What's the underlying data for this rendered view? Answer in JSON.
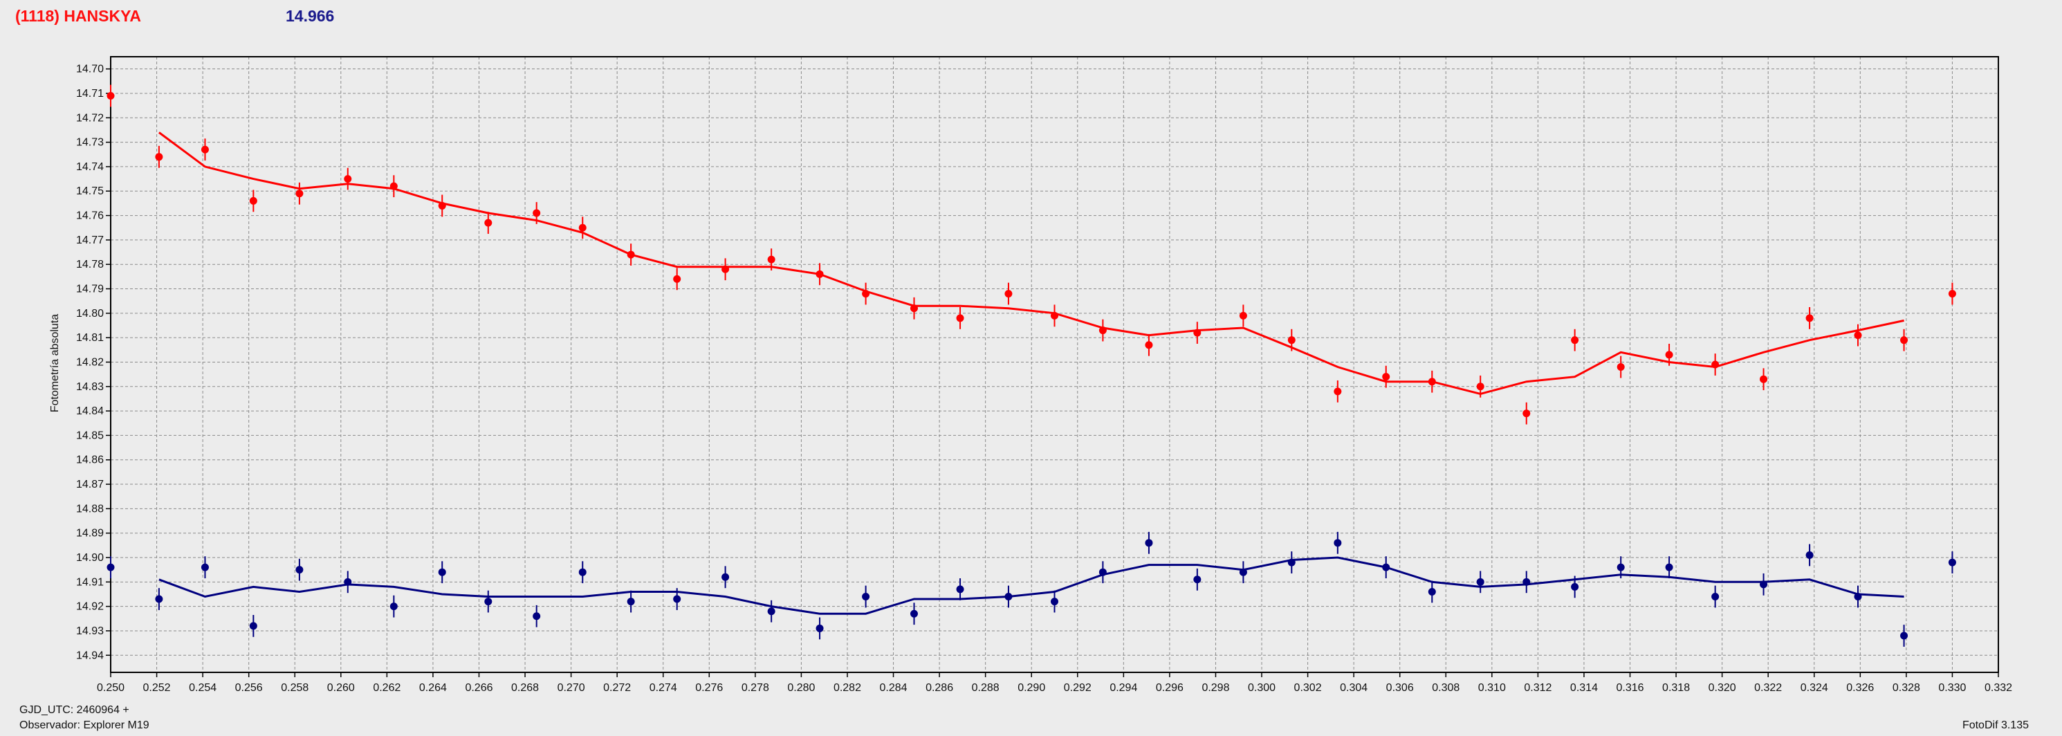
{
  "header": {
    "object": "(1118) HANSKYA",
    "magnitude": "14.966"
  },
  "footer": {
    "gjd": "GJD_UTC: 2460964 +",
    "observer": "Observador: Explorer M19",
    "software": "FotoDif 3.135"
  },
  "colors": {
    "target": "#ff0000",
    "comparison": "#00007f",
    "background": "#ececec"
  },
  "chart_data": {
    "type": "scatter",
    "ylabel": "Fotometría absoluta",
    "xlabel": "",
    "xlim": [
      0.25,
      0.332
    ],
    "ylim": [
      14.695,
      14.947
    ],
    "y_inverted": true,
    "grid": true,
    "x_ticks": [
      "0.250",
      "0.252",
      "0.254",
      "0.256",
      "0.258",
      "0.260",
      "0.262",
      "0.264",
      "0.266",
      "0.268",
      "0.270",
      "0.272",
      "0.274",
      "0.276",
      "0.278",
      "0.280",
      "0.282",
      "0.284",
      "0.286",
      "0.288",
      "0.290",
      "0.292",
      "0.294",
      "0.296",
      "0.298",
      "0.300",
      "0.302",
      "0.304",
      "0.306",
      "0.308",
      "0.310",
      "0.312",
      "0.314",
      "0.316",
      "0.318",
      "0.320",
      "0.322",
      "0.324",
      "0.326",
      "0.328",
      "0.330",
      "0.332"
    ],
    "y_ticks": [
      "14.70",
      "14.71",
      "14.72",
      "14.73",
      "14.74",
      "14.75",
      "14.76",
      "14.77",
      "14.78",
      "14.79",
      "14.80",
      "14.81",
      "14.82",
      "14.83",
      "14.84",
      "14.85",
      "14.86",
      "14.87",
      "14.88",
      "14.89",
      "14.90",
      "14.91",
      "14.92",
      "14.93",
      "14.94"
    ],
    "series": [
      {
        "color": "#ff0000",
        "points": [
          [
            0.25,
            14.711
          ],
          [
            0.2521,
            14.736
          ],
          [
            0.2541,
            14.733
          ],
          [
            0.2562,
            14.754
          ],
          [
            0.2582,
            14.751
          ],
          [
            0.2603,
            14.745
          ],
          [
            0.2623,
            14.748
          ],
          [
            0.2644,
            14.756
          ],
          [
            0.2664,
            14.763
          ],
          [
            0.2685,
            14.759
          ],
          [
            0.2705,
            14.765
          ],
          [
            0.2726,
            14.776
          ],
          [
            0.2746,
            14.786
          ],
          [
            0.2767,
            14.782
          ],
          [
            0.2787,
            14.778
          ],
          [
            0.2808,
            14.784
          ],
          [
            0.2828,
            14.792
          ],
          [
            0.2849,
            14.798
          ],
          [
            0.2869,
            14.802
          ],
          [
            0.289,
            14.792
          ],
          [
            0.291,
            14.801
          ],
          [
            0.2931,
            14.807
          ],
          [
            0.2951,
            14.813
          ],
          [
            0.2972,
            14.808
          ],
          [
            0.2992,
            14.801
          ],
          [
            0.3013,
            14.811
          ],
          [
            0.3033,
            14.832
          ],
          [
            0.3054,
            14.826
          ],
          [
            0.3074,
            14.828
          ],
          [
            0.3095,
            14.83
          ],
          [
            0.3115,
            14.841
          ],
          [
            0.3136,
            14.811
          ],
          [
            0.3156,
            14.822
          ],
          [
            0.3177,
            14.817
          ],
          [
            0.3197,
            14.821
          ],
          [
            0.3218,
            14.827
          ],
          [
            0.3238,
            14.802
          ],
          [
            0.3259,
            14.809
          ],
          [
            0.3279,
            14.811
          ],
          [
            0.33,
            14.792
          ]
        ],
        "fit": [
          [
            0.2521,
            14.726
          ],
          [
            0.2541,
            14.74
          ],
          [
            0.2562,
            14.745
          ],
          [
            0.2582,
            14.749
          ],
          [
            0.2603,
            14.747
          ],
          [
            0.2623,
            14.749
          ],
          [
            0.2644,
            14.755
          ],
          [
            0.2664,
            14.759
          ],
          [
            0.2685,
            14.762
          ],
          [
            0.2705,
            14.767
          ],
          [
            0.2726,
            14.776
          ],
          [
            0.2746,
            14.781
          ],
          [
            0.2767,
            14.781
          ],
          [
            0.2787,
            14.781
          ],
          [
            0.2808,
            14.784
          ],
          [
            0.2828,
            14.791
          ],
          [
            0.2849,
            14.797
          ],
          [
            0.2869,
            14.797
          ],
          [
            0.289,
            14.798
          ],
          [
            0.291,
            14.8
          ],
          [
            0.2931,
            14.806
          ],
          [
            0.2951,
            14.809
          ],
          [
            0.2972,
            14.807
          ],
          [
            0.2992,
            14.806
          ],
          [
            0.3013,
            14.814
          ],
          [
            0.3033,
            14.822
          ],
          [
            0.3054,
            14.828
          ],
          [
            0.3074,
            14.828
          ],
          [
            0.3095,
            14.833
          ],
          [
            0.3115,
            14.828
          ],
          [
            0.3136,
            14.826
          ],
          [
            0.3156,
            14.816
          ],
          [
            0.3177,
            14.82
          ],
          [
            0.3197,
            14.822
          ],
          [
            0.3218,
            14.816
          ],
          [
            0.3238,
            14.811
          ],
          [
            0.3259,
            14.807
          ],
          [
            0.3279,
            14.803
          ]
        ]
      },
      {
        "color": "#00007f",
        "points": [
          [
            0.25,
            14.904
          ],
          [
            0.2521,
            14.917
          ],
          [
            0.2541,
            14.904
          ],
          [
            0.2562,
            14.928
          ],
          [
            0.2582,
            14.905
          ],
          [
            0.2603,
            14.91
          ],
          [
            0.2623,
            14.92
          ],
          [
            0.2644,
            14.906
          ],
          [
            0.2664,
            14.918
          ],
          [
            0.2685,
            14.924
          ],
          [
            0.2705,
            14.906
          ],
          [
            0.2726,
            14.918
          ],
          [
            0.2746,
            14.917
          ],
          [
            0.2767,
            14.908
          ],
          [
            0.2787,
            14.922
          ],
          [
            0.2808,
            14.929
          ],
          [
            0.2828,
            14.916
          ],
          [
            0.2849,
            14.923
          ],
          [
            0.2869,
            14.913
          ],
          [
            0.289,
            14.916
          ],
          [
            0.291,
            14.918
          ],
          [
            0.2931,
            14.906
          ],
          [
            0.2951,
            14.894
          ],
          [
            0.2972,
            14.909
          ],
          [
            0.2992,
            14.906
          ],
          [
            0.3013,
            14.902
          ],
          [
            0.3033,
            14.894
          ],
          [
            0.3054,
            14.904
          ],
          [
            0.3074,
            14.914
          ],
          [
            0.3095,
            14.91
          ],
          [
            0.3115,
            14.91
          ],
          [
            0.3136,
            14.912
          ],
          [
            0.3156,
            14.904
          ],
          [
            0.3177,
            14.904
          ],
          [
            0.3197,
            14.916
          ],
          [
            0.3218,
            14.911
          ],
          [
            0.3238,
            14.899
          ],
          [
            0.3259,
            14.916
          ],
          [
            0.3279,
            14.932
          ],
          [
            0.33,
            14.902
          ]
        ],
        "fit": [
          [
            0.2521,
            14.909
          ],
          [
            0.2541,
            14.916
          ],
          [
            0.2562,
            14.912
          ],
          [
            0.2582,
            14.914
          ],
          [
            0.2603,
            14.911
          ],
          [
            0.2623,
            14.912
          ],
          [
            0.2644,
            14.915
          ],
          [
            0.2664,
            14.916
          ],
          [
            0.2685,
            14.916
          ],
          [
            0.2705,
            14.916
          ],
          [
            0.2726,
            14.914
          ],
          [
            0.2746,
            14.914
          ],
          [
            0.2767,
            14.916
          ],
          [
            0.2787,
            14.92
          ],
          [
            0.2808,
            14.923
          ],
          [
            0.2828,
            14.923
          ],
          [
            0.2849,
            14.917
          ],
          [
            0.2869,
            14.917
          ],
          [
            0.289,
            14.916
          ],
          [
            0.291,
            14.914
          ],
          [
            0.2931,
            14.907
          ],
          [
            0.2951,
            14.903
          ],
          [
            0.2972,
            14.903
          ],
          [
            0.2992,
            14.905
          ],
          [
            0.3013,
            14.901
          ],
          [
            0.3033,
            14.9
          ],
          [
            0.3054,
            14.904
          ],
          [
            0.3074,
            14.91
          ],
          [
            0.3095,
            14.912
          ],
          [
            0.3115,
            14.911
          ],
          [
            0.3136,
            14.909
          ],
          [
            0.3156,
            14.907
          ],
          [
            0.3177,
            14.908
          ],
          [
            0.3197,
            14.91
          ],
          [
            0.3218,
            14.91
          ],
          [
            0.3238,
            14.909
          ],
          [
            0.3259,
            14.915
          ],
          [
            0.3279,
            14.916
          ]
        ]
      }
    ]
  }
}
